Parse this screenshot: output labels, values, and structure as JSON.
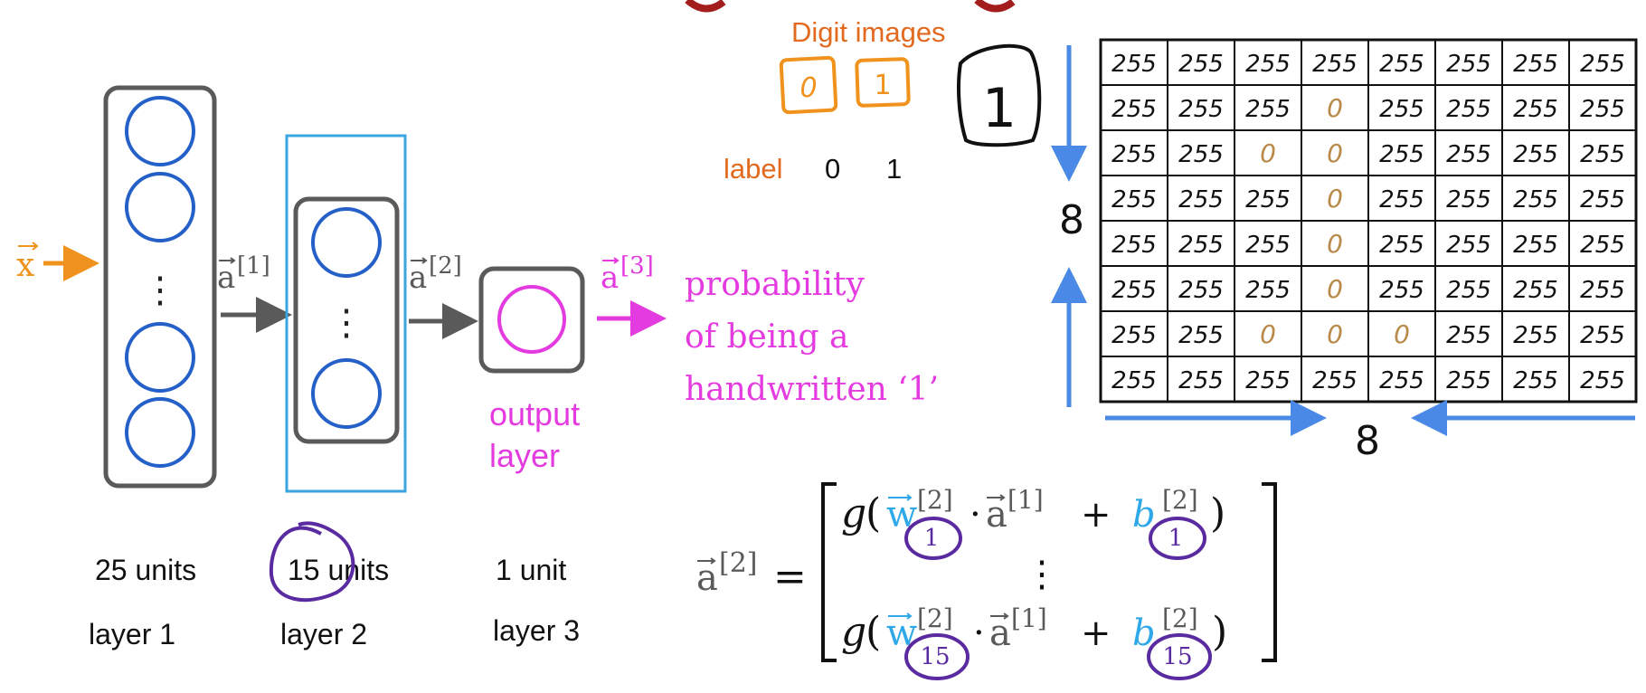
{
  "network": {
    "input_label": "x",
    "activations": [
      "a",
      "a",
      "a"
    ],
    "superscripts": [
      "[1]",
      "[2]",
      "[3]"
    ],
    "ellipsis": "⋮",
    "output_text": [
      "output",
      "layer"
    ],
    "probability_text": [
      "probability",
      "of being a",
      "handwritten ‘1’"
    ],
    "unit_counts": [
      "25 units",
      "15 units",
      "1 unit"
    ],
    "layer_names": [
      "layer 1",
      "layer 2",
      "layer 3"
    ]
  },
  "digits": {
    "title": "Digit images",
    "examples": [
      "0",
      "1"
    ],
    "label_word": "label",
    "label_values": [
      "0",
      "1"
    ],
    "sketch": "1"
  },
  "grid": {
    "rows": [
      [
        "255",
        "255",
        "255",
        "255",
        "255",
        "255",
        "255",
        "255"
      ],
      [
        "255",
        "255",
        "255",
        "0",
        "255",
        "255",
        "255",
        "255"
      ],
      [
        "255",
        "255",
        "0",
        "0",
        "255",
        "255",
        "255",
        "255"
      ],
      [
        "255",
        "255",
        "255",
        "0",
        "255",
        "255",
        "255",
        "255"
      ],
      [
        "255",
        "255",
        "255",
        "0",
        "255",
        "255",
        "255",
        "255"
      ],
      [
        "255",
        "255",
        "255",
        "0",
        "255",
        "255",
        "255",
        "255"
      ],
      [
        "255",
        "255",
        "0",
        "0",
        "0",
        "255",
        "255",
        "255"
      ],
      [
        "255",
        "255",
        "255",
        "255",
        "255",
        "255",
        "255",
        "255"
      ]
    ],
    "height_label": "8",
    "width_label": "8"
  },
  "equation": {
    "lhs": "a",
    "lhs_sup": "[2]",
    "equals": "=",
    "g": "g",
    "w": "w",
    "b": "b",
    "a": "a",
    "sup2": "[2]",
    "sup1": "[1]",
    "plus": "+",
    "dot": "·",
    "open": "(",
    "close": ")",
    "row_subs": [
      "1",
      "15"
    ],
    "vdots": "⋮"
  },
  "colors": {
    "orange": "#f0931e",
    "blue_circle": "#2460c8",
    "box_gray": "#5a5a5a",
    "highlight_box": "#3aa6e0",
    "magenta": "#e43be0",
    "brown": "#b98a4a",
    "arrow_blue": "#4a8ae6",
    "purple": "#5a2aa0",
    "w_blue": "#2ea8e8",
    "label_orange": "#e26a1f"
  }
}
